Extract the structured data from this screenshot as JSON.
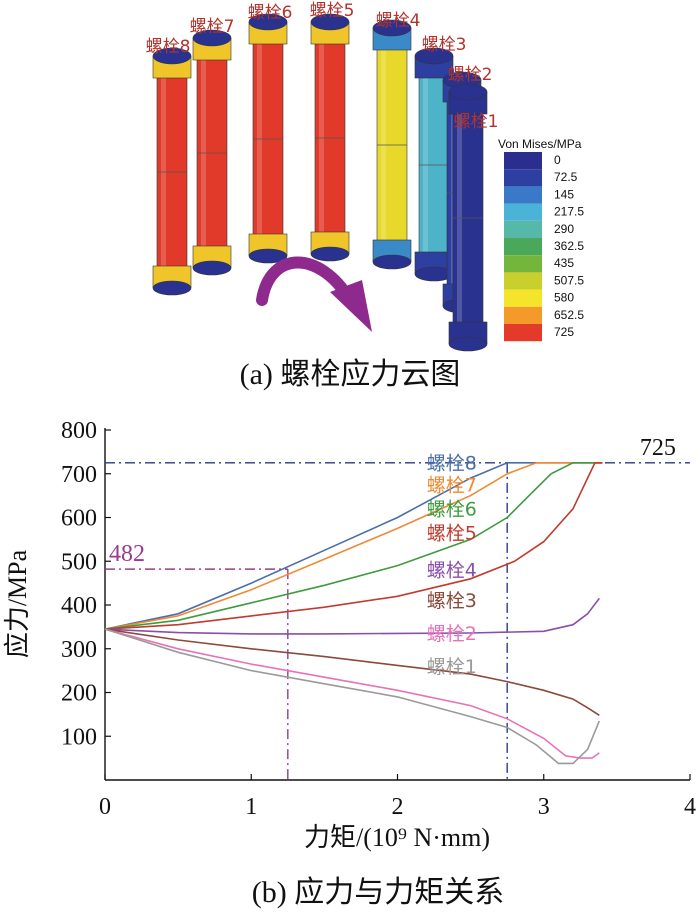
{
  "figure_a": {
    "caption": "(a) 螺栓应力云图",
    "bolt_labels": [
      "螺栓8",
      "螺栓7",
      "螺栓6",
      "螺栓5",
      "螺栓4",
      "螺栓3",
      "螺栓2",
      "螺栓1"
    ],
    "legend_title": "Von Mises/MPa",
    "legend_values": [
      "0",
      "72.5",
      "145",
      "217.5",
      "290",
      "362.5",
      "435",
      "507.5",
      "580",
      "652.5",
      "725"
    ],
    "legend_colors": [
      "#2a2f8f",
      "#2d3fa0",
      "#3a78c8",
      "#4cb3d8",
      "#56b8a8",
      "#4aa85a",
      "#74b63c",
      "#c9cf2c",
      "#f4e42a",
      "#f39a2a",
      "#e33a2a"
    ],
    "arrow_color": "#8e2a8e"
  },
  "chart_data": {
    "type": "line",
    "caption": "(b) 应力与力矩关系",
    "xlabel": "力矩/(10⁹ N·mm)",
    "ylabel": "应力/MPa",
    "xlim": [
      0,
      4
    ],
    "ylim": [
      0,
      800
    ],
    "xticks": [
      "0",
      "1",
      "2",
      "3",
      "4"
    ],
    "yticks": [
      "100",
      "200",
      "300",
      "400",
      "500",
      "600",
      "700",
      "800"
    ],
    "annotations": [
      {
        "text": "725",
        "y": 725,
        "color": "#2b3a8a"
      },
      {
        "text": "482",
        "y": 482,
        "x": 1.25,
        "color": "#9b3b8f"
      },
      {
        "x": 2.75,
        "color": "#2b3a8a"
      }
    ],
    "series": [
      {
        "name": "螺栓8",
        "color": "#4a6fa8",
        "points": [
          [
            0,
            345
          ],
          [
            0.5,
            380
          ],
          [
            1,
            450
          ],
          [
            1.5,
            525
          ],
          [
            2,
            600
          ],
          [
            2.5,
            690
          ],
          [
            2.75,
            725
          ],
          [
            3.4,
            725
          ]
        ]
      },
      {
        "name": "螺栓7",
        "color": "#ef8a33",
        "points": [
          [
            0,
            345
          ],
          [
            0.5,
            375
          ],
          [
            1,
            435
          ],
          [
            1.5,
            505
          ],
          [
            2,
            575
          ],
          [
            2.5,
            650
          ],
          [
            2.75,
            700
          ],
          [
            2.95,
            725
          ],
          [
            3.4,
            725
          ]
        ]
      },
      {
        "name": "螺栓6",
        "color": "#3f9b3f",
        "points": [
          [
            0,
            345
          ],
          [
            0.5,
            365
          ],
          [
            1,
            405
          ],
          [
            1.5,
            445
          ],
          [
            2,
            490
          ],
          [
            2.5,
            550
          ],
          [
            2.75,
            600
          ],
          [
            2.9,
            650
          ],
          [
            3.05,
            700
          ],
          [
            3.2,
            725
          ],
          [
            3.4,
            725
          ]
        ]
      },
      {
        "name": "螺栓5",
        "color": "#c23b2e",
        "points": [
          [
            0,
            345
          ],
          [
            0.5,
            355
          ],
          [
            1,
            375
          ],
          [
            1.5,
            395
          ],
          [
            2,
            420
          ],
          [
            2.5,
            460
          ],
          [
            2.8,
            500
          ],
          [
            3.0,
            545
          ],
          [
            3.2,
            620
          ],
          [
            3.3,
            690
          ],
          [
            3.35,
            725
          ],
          [
            3.4,
            725
          ]
        ]
      },
      {
        "name": "螺栓4",
        "color": "#8a4fa8",
        "points": [
          [
            0,
            345
          ],
          [
            0.5,
            337
          ],
          [
            1,
            334
          ],
          [
            1.5,
            334
          ],
          [
            2,
            335
          ],
          [
            2.5,
            336
          ],
          [
            3.0,
            340
          ],
          [
            3.2,
            355
          ],
          [
            3.3,
            380
          ],
          [
            3.38,
            415
          ]
        ]
      },
      {
        "name": "螺栓3",
        "color": "#8b4a3a",
        "points": [
          [
            0,
            345
          ],
          [
            0.5,
            320
          ],
          [
            1,
            300
          ],
          [
            1.5,
            282
          ],
          [
            2,
            262
          ],
          [
            2.5,
            242
          ],
          [
            2.75,
            225
          ],
          [
            3.0,
            205
          ],
          [
            3.2,
            185
          ],
          [
            3.3,
            165
          ],
          [
            3.38,
            148
          ]
        ]
      },
      {
        "name": "螺栓2",
        "color": "#e872b8",
        "points": [
          [
            0,
            345
          ],
          [
            0.5,
            300
          ],
          [
            1,
            265
          ],
          [
            1.5,
            235
          ],
          [
            2,
            205
          ],
          [
            2.5,
            170
          ],
          [
            2.75,
            140
          ],
          [
            3.0,
            95
          ],
          [
            3.15,
            55
          ],
          [
            3.25,
            50
          ],
          [
            3.33,
            50
          ],
          [
            3.38,
            62
          ]
        ]
      },
      {
        "name": "螺栓1",
        "color": "#9a9a9a",
        "points": [
          [
            0,
            345
          ],
          [
            0.5,
            292
          ],
          [
            1,
            250
          ],
          [
            1.5,
            220
          ],
          [
            2,
            190
          ],
          [
            2.5,
            145
          ],
          [
            2.75,
            120
          ],
          [
            2.95,
            80
          ],
          [
            3.1,
            38
          ],
          [
            3.2,
            38
          ],
          [
            3.3,
            70
          ],
          [
            3.38,
            135
          ]
        ]
      }
    ],
    "label_positions": [
      [
        2.2,
        710
      ],
      [
        2.2,
        660
      ],
      [
        2.2,
        605
      ],
      [
        2.2,
        550
      ],
      [
        2.2,
        465
      ],
      [
        2.2,
        395
      ],
      [
        2.2,
        320
      ],
      [
        2.2,
        245
      ]
    ]
  }
}
